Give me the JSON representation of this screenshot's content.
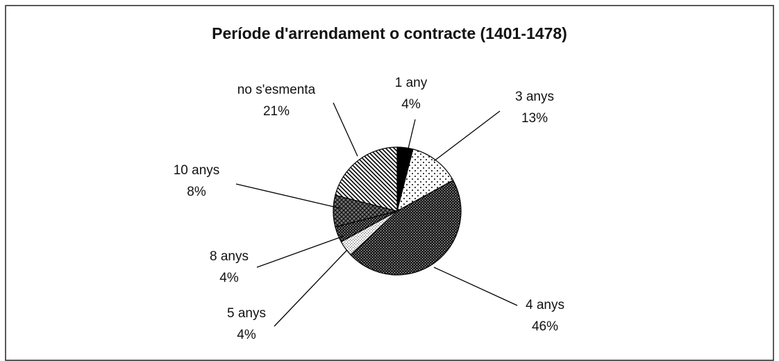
{
  "chart_data": {
    "type": "pie",
    "title": "Període d'arrendament o contracte (1401-1478)",
    "categories": [
      "1 any",
      "3 anys",
      "4 anys",
      "5 anys",
      "8 anys",
      "10 anys",
      "no s'esmenta"
    ],
    "values": [
      4,
      13,
      46,
      4,
      4,
      8,
      21
    ],
    "value_labels": [
      "4%",
      "13%",
      "46%",
      "4%",
      "4%",
      "8%",
      "21%"
    ]
  }
}
